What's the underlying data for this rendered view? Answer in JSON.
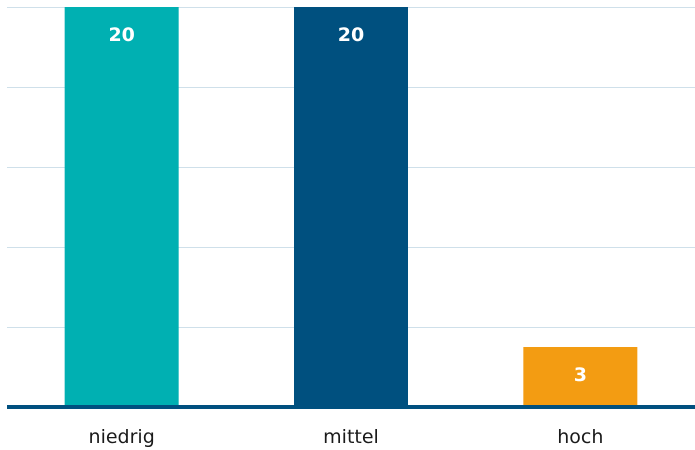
{
  "chart_data": {
    "type": "bar",
    "categories": [
      "niedrig",
      "mittel",
      "hoch"
    ],
    "values": [
      20,
      20,
      3
    ],
    "data_labels": [
      "20",
      "20",
      "3"
    ],
    "colors": [
      "#00b0b2",
      "#00507f",
      "#f39c12"
    ],
    "ylim": [
      0,
      20
    ],
    "grid": true,
    "legend": "none"
  }
}
